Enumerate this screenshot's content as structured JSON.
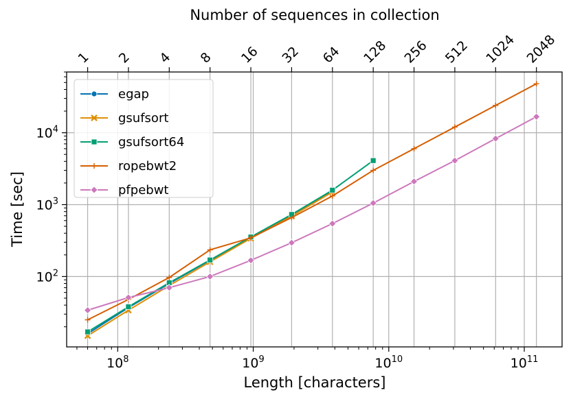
{
  "chart_data": {
    "type": "line",
    "title": "",
    "xlabel": "Length [characters]",
    "ylabel": "Time [sec]",
    "x2label": "Number of sequences in collection",
    "xscale": "log",
    "yscale": "log",
    "xlim": [
      42000000,
      190000000000
    ],
    "ylim": [
      10.5,
      70000
    ],
    "grid": true,
    "legend_position": "top-left",
    "x_ticks": [
      {
        "value": 100000000,
        "base": "10",
        "exp": "8"
      },
      {
        "value": 1000000000,
        "base": "10",
        "exp": "9"
      },
      {
        "value": 10000000000,
        "base": "10",
        "exp": "10"
      },
      {
        "value": 100000000000,
        "base": "10",
        "exp": "11"
      }
    ],
    "y_ticks": [
      {
        "value": 100,
        "base": "10",
        "exp": "2"
      },
      {
        "value": 1000,
        "base": "10",
        "exp": "3"
      },
      {
        "value": 10000,
        "base": "10",
        "exp": "4"
      }
    ],
    "top_ticks": [
      {
        "value": 60000000,
        "label": "1"
      },
      {
        "value": 120000000,
        "label": "2"
      },
      {
        "value": 240000000,
        "label": "4"
      },
      {
        "value": 480000000,
        "label": "8"
      },
      {
        "value": 960000000,
        "label": "16"
      },
      {
        "value": 1920000000,
        "label": "32"
      },
      {
        "value": 3840000000,
        "label": "64"
      },
      {
        "value": 7680000000,
        "label": "128"
      },
      {
        "value": 15360000000,
        "label": "256"
      },
      {
        "value": 30720000000,
        "label": "512"
      },
      {
        "value": 61440000000,
        "label": "1024"
      },
      {
        "value": 122880000000,
        "label": "2048"
      }
    ],
    "series": [
      {
        "name": "egap",
        "color": "#0173b2",
        "marker": "circle",
        "x": [
          60000000,
          120000000,
          240000000,
          480000000,
          960000000,
          1920000000,
          3840000000
        ],
        "y": [
          16,
          37,
          80,
          168,
          350,
          720,
          1570
        ]
      },
      {
        "name": "gsufsort",
        "color": "#de8f05",
        "marker": "x",
        "x": [
          60000000,
          120000000,
          240000000,
          480000000,
          960000000,
          1920000000,
          3840000000
        ],
        "y": [
          15,
          34,
          75,
          160,
          340,
          690,
          1500
        ]
      },
      {
        "name": "gsufsort64",
        "color": "#029e73",
        "marker": "square",
        "x": [
          60000000,
          120000000,
          240000000,
          480000000,
          960000000,
          1920000000,
          3840000000,
          7680000000
        ],
        "y": [
          17,
          38,
          82,
          170,
          355,
          730,
          1590,
          4100
        ]
      },
      {
        "name": "ropebwt2",
        "color": "#d55e00",
        "marker": "plus",
        "x": [
          60000000,
          120000000,
          240000000,
          480000000,
          960000000,
          1920000000,
          3840000000,
          7680000000,
          15360000000,
          30720000000,
          61440000000,
          122880000000
        ],
        "y": [
          25,
          48,
          97,
          235,
          345,
          660,
          1320,
          3000,
          6000,
          12000,
          24000,
          48000
        ]
      },
      {
        "name": "pfpebwt",
        "color": "#cc78bc",
        "marker": "diamond",
        "x": [
          60000000,
          120000000,
          240000000,
          480000000,
          960000000,
          1920000000,
          3840000000,
          7680000000,
          15360000000,
          30720000000,
          61440000000,
          122880000000
        ],
        "y": [
          34,
          51,
          70,
          100,
          168,
          295,
          545,
          1050,
          2100,
          4100,
          8300,
          16700
        ]
      }
    ]
  }
}
